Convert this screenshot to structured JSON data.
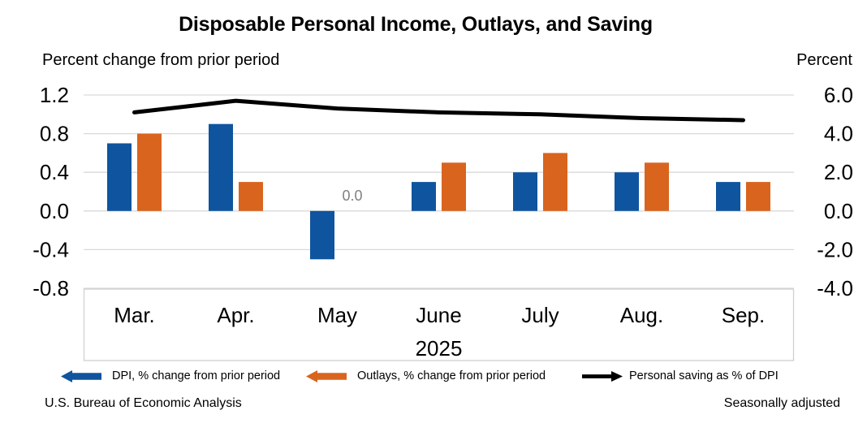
{
  "chart_data": {
    "type": "bar+line",
    "title": "Disposable Personal Income, Outlays, and Saving",
    "year_label": "2025",
    "categories": [
      "Mar.",
      "Apr.",
      "May",
      "June",
      "July",
      "Aug.",
      "Sep."
    ],
    "left_axis": {
      "label": "Percent change from prior period",
      "ticks": [
        "1.2",
        "0.8",
        "0.4",
        "0.0",
        "-0.4",
        "-0.8"
      ],
      "range": [
        -0.8,
        1.2
      ]
    },
    "right_axis": {
      "label": "Percent",
      "ticks": [
        "6.0",
        "4.0",
        "2.0",
        "0.0",
        "-2.0",
        "-4.0"
      ],
      "range": [
        -4.0,
        6.0
      ]
    },
    "grid": true,
    "series": [
      {
        "name": "DPI, % change from prior period",
        "type": "bar",
        "axis": "left",
        "color": "#0F549E",
        "values": [
          0.7,
          0.9,
          -0.5,
          0.3,
          0.4,
          0.4,
          0.3
        ]
      },
      {
        "name": "Outlays, % change from prior period",
        "type": "bar",
        "axis": "left",
        "color": "#D9641E",
        "values": [
          0.8,
          0.3,
          0.0,
          0.5,
          0.6,
          0.5,
          0.3
        ]
      },
      {
        "name": "Personal saving as % of DPI",
        "type": "line",
        "axis": "right",
        "color": "#000000",
        "values": [
          5.1,
          5.7,
          5.3,
          5.1,
          5.0,
          4.8,
          4.7
        ]
      }
    ],
    "annotations": [
      {
        "text": "0.0",
        "category": "May",
        "series": "Outlays, % change from prior period",
        "color": "#7F7F7F"
      }
    ]
  },
  "footer": {
    "left": "U.S. Bureau of Economic Analysis",
    "right": "Seasonally adjusted"
  }
}
